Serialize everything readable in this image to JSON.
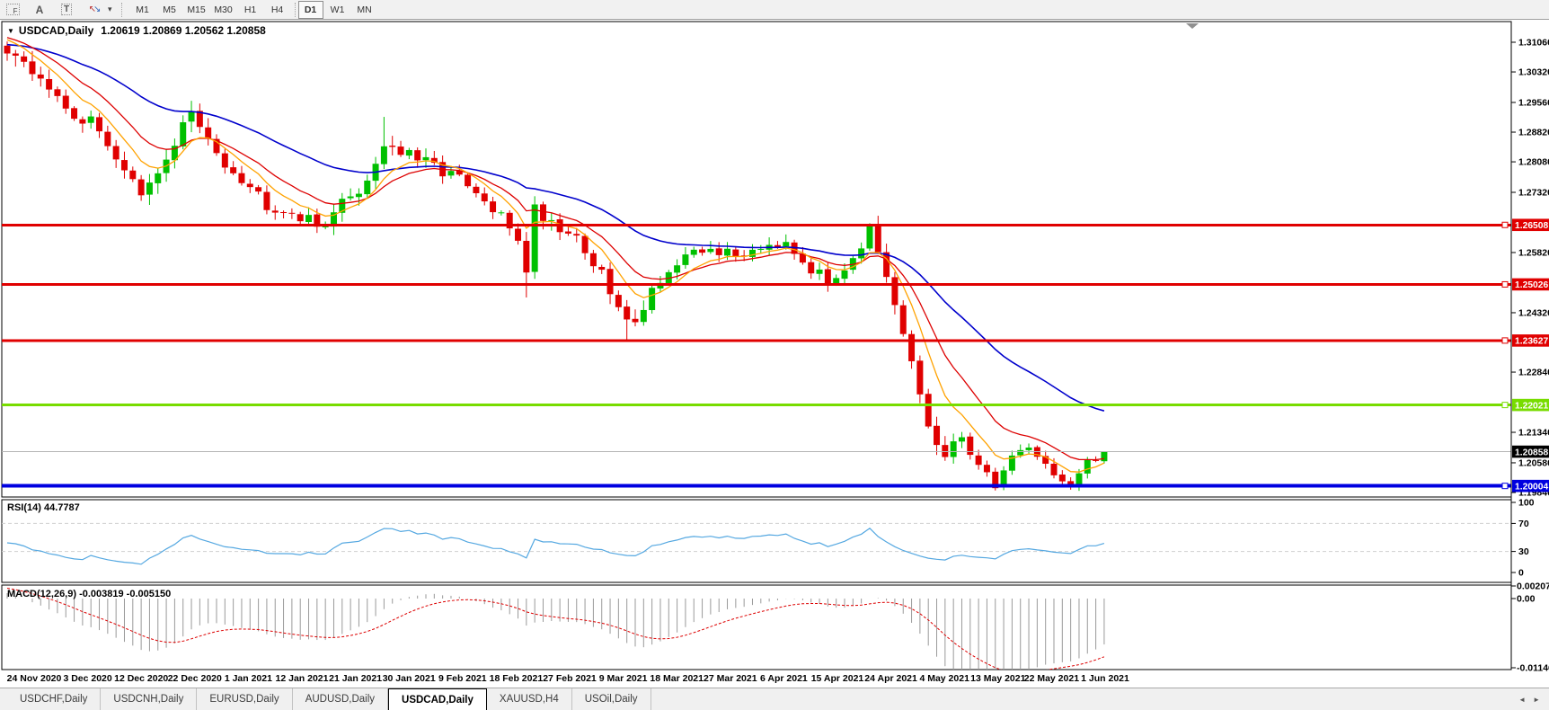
{
  "toolbar": {
    "tools": [
      {
        "name": "fibonacci-tool",
        "glyph": "F"
      },
      {
        "name": "text-label-tool",
        "glyph": "A"
      },
      {
        "name": "text-tool",
        "glyph": "T"
      }
    ],
    "arrow_icons": [
      "↖",
      "↘"
    ],
    "caret": "▾",
    "timeframes": [
      "M1",
      "M5",
      "M15",
      "M30",
      "H1",
      "H4",
      "D1",
      "W1",
      "MN"
    ],
    "active_timeframe": "D1"
  },
  "chart": {
    "collapse_icon": "▼",
    "title_symbol": "USDCAD,Daily",
    "title_ohlc": "1.20619 1.20869 1.20562 1.20858",
    "price_ticks": [
      "1.31060",
      "1.30320",
      "1.29560",
      "1.28820",
      "1.28080",
      "1.27320",
      "1.25820",
      "1.24320",
      "1.22840",
      "1.21340",
      "1.20580",
      "1.19840"
    ],
    "price_badges": [
      {
        "text": "1.26508",
        "color": "#e00000"
      },
      {
        "text": "1.25026",
        "color": "#e00000"
      },
      {
        "text": "1.23627",
        "color": "#e00000"
      },
      {
        "text": "1.22021",
        "color": "#78dc00"
      },
      {
        "text": "1.20858",
        "color": "#000000"
      },
      {
        "text": "1.20004",
        "color": "#0000e0"
      }
    ],
    "dates": [
      "24 Nov 2020",
      "3 Dec 2020",
      "12 Dec 2020",
      "22 Dec 2020",
      "1 Jan 2021",
      "12 Jan 2021",
      "21 Jan 2021",
      "30 Jan 2021",
      "9 Feb 2021",
      "18 Feb 2021",
      "27 Feb 2021",
      "9 Mar 2021",
      "18 Mar 2021",
      "27 Mar 2021",
      "6 Apr 2021",
      "15 Apr 2021",
      "24 Apr 2021",
      "4 May 2021",
      "13 May 2021",
      "22 May 2021",
      "1 Jun 2021"
    ]
  },
  "rsi_panel": {
    "label": "RSI(14) 44.7787",
    "ticks": [
      "100",
      "70",
      "30",
      "0"
    ]
  },
  "macd_panel": {
    "label": "MACD(12,26,9) -0.003819 -0.005150",
    "ticks": [
      "0.002074",
      "0.00",
      "-0.01146"
    ]
  },
  "tabs": {
    "items": [
      "USDCHF,Daily",
      "USDCNH,Daily",
      "EURUSD,Daily",
      "AUDUSD,Daily",
      "USDCAD,Daily",
      "XAUUSD,H4",
      "USOil,Daily"
    ],
    "active": "USDCAD,Daily",
    "scroll_left": "◄",
    "scroll_right": "►"
  },
  "chart_data": {
    "type": "candlestick",
    "symbol": "USDCAD",
    "timeframe": "Daily",
    "last_ohlc": {
      "open": 1.20619,
      "high": 1.20869,
      "low": 1.20562,
      "close": 1.20858
    },
    "price_range": {
      "min": 1.1984,
      "max": 1.3106
    },
    "visible_count": 132,
    "preroll": 60,
    "anchors": [
      [
        -60,
        1.296,
        0.0024
      ],
      [
        -45,
        1.301,
        0.0024
      ],
      [
        -30,
        1.307,
        0.0024
      ],
      [
        -15,
        1.311,
        0.0026
      ],
      [
        -6,
        1.315,
        0.0026
      ],
      [
        -1,
        1.311,
        0.0026
      ],
      [
        0,
        1.3095,
        0.003
      ],
      [
        2,
        1.304,
        0.003
      ],
      [
        4,
        1.3022,
        0.0028
      ],
      [
        6,
        1.2958,
        0.0028
      ],
      [
        8,
        1.293,
        0.0026
      ],
      [
        10,
        1.2902,
        0.0026
      ],
      [
        12,
        1.2858,
        0.0026
      ],
      [
        14,
        1.2792,
        0.0026
      ],
      [
        16,
        1.2716,
        0.0026
      ],
      [
        18,
        1.2772,
        0.0028
      ],
      [
        20,
        1.2862,
        0.003
      ],
      [
        22,
        1.2935,
        0.003
      ],
      [
        23,
        1.2882,
        0.0028
      ],
      [
        25,
        1.2832,
        0.0026
      ],
      [
        28,
        1.2772,
        0.0024
      ],
      [
        31,
        1.2706,
        0.0024
      ],
      [
        34,
        1.2686,
        0.0022
      ],
      [
        37,
        1.2646,
        0.0022
      ],
      [
        40,
        1.2702,
        0.0024
      ],
      [
        43,
        1.2762,
        0.0026
      ],
      [
        45,
        1.2858,
        0.0028
      ],
      [
        47,
        1.2832,
        0.0026
      ],
      [
        50,
        1.2802,
        0.0024
      ],
      [
        53,
        1.2782,
        0.0022
      ],
      [
        56,
        1.2722,
        0.0024
      ],
      [
        59,
        1.2666,
        0.0024
      ],
      [
        61,
        1.2622,
        0.0026
      ],
      [
        62,
        1.2548,
        0.0034
      ],
      [
        63,
        1.2692,
        0.0034
      ],
      [
        65,
        1.2662,
        0.0026
      ],
      [
        68,
        1.2622,
        0.0024
      ],
      [
        71,
        1.2522,
        0.0026
      ],
      [
        74,
        1.2402,
        0.0028
      ],
      [
        76,
        1.2452,
        0.0026
      ],
      [
        78,
        1.2522,
        0.0024
      ],
      [
        81,
        1.2562,
        0.0022
      ],
      [
        84,
        1.2592,
        0.002
      ],
      [
        87,
        1.2572,
        0.002
      ],
      [
        90,
        1.2602,
        0.002
      ],
      [
        93,
        1.2616,
        0.002
      ],
      [
        96,
        1.2542,
        0.002
      ],
      [
        98,
        1.2506,
        0.002
      ],
      [
        100,
        1.2552,
        0.002
      ],
      [
        102,
        1.2602,
        0.0022
      ],
      [
        103,
        1.2642,
        0.0026
      ],
      [
        104,
        1.2562,
        0.0028
      ],
      [
        106,
        1.2442,
        0.0028
      ],
      [
        108,
        1.2302,
        0.0028
      ],
      [
        110,
        1.2152,
        0.0028
      ],
      [
        112,
        1.2062,
        0.0026
      ],
      [
        114,
        1.2126,
        0.0018
      ],
      [
        116,
        1.2052,
        0.0016
      ],
      [
        118,
        1.2002,
        0.0014
      ],
      [
        120,
        1.2076,
        0.0014
      ],
      [
        122,
        1.2102,
        0.0013
      ],
      [
        124,
        1.2052,
        0.0013
      ],
      [
        126,
        1.2012,
        0.0012
      ],
      [
        127,
        1.1996,
        0.0012
      ],
      [
        129,
        1.2056,
        0.0012
      ],
      [
        130,
        1.2062,
        0.001
      ],
      [
        131,
        1.20858,
        0.0008
      ]
    ],
    "wick_events": [
      {
        "i": 22,
        "high": 1.296
      },
      {
        "i": 45,
        "high": 1.292
      },
      {
        "i": 62,
        "low": 1.247
      },
      {
        "i": 74,
        "low": 1.23635
      },
      {
        "i": 103,
        "high": 1.2655
      },
      {
        "i": 118,
        "low": 1.1989
      },
      {
        "i": 127,
        "low": 1.1991
      }
    ],
    "hlines": [
      {
        "price": 1.26508,
        "color": "#e00000",
        "width": 3
      },
      {
        "price": 1.25026,
        "color": "#e00000",
        "width": 3
      },
      {
        "price": 1.23627,
        "color": "#e00000",
        "width": 3
      },
      {
        "price": 1.22021,
        "color": "#78dc00",
        "width": 3
      },
      {
        "price": 1.20004,
        "color": "#0000e0",
        "width": 4
      }
    ],
    "current_price": 1.20858,
    "ma_lines": [
      {
        "type": "ema",
        "period": 34,
        "color": "#0000cc",
        "width": 1.6
      },
      {
        "type": "ema",
        "period": 13,
        "color": "#dd0000",
        "width": 1.3
      },
      {
        "type": "ema",
        "period": 7,
        "color": "#ffa200",
        "width": 1.3
      }
    ],
    "rsi": {
      "period": 14,
      "value": 44.7787,
      "levels": [
        70,
        30
      ],
      "color": "#55a8e1"
    },
    "macd": {
      "fast": 12,
      "slow": 26,
      "signal": 9,
      "value": -0.003819,
      "signal_value": -0.00515,
      "hist_color": "#9a9a9a",
      "signal_color": "#dd0000"
    },
    "candle_colors": {
      "bull": "#00c000",
      "bear": "#e00000"
    }
  }
}
